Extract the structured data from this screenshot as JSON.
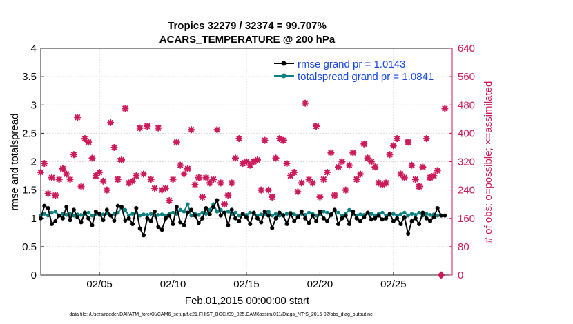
{
  "chart_data": {
    "type": "line",
    "title_line1": "Tropics 32279 / 32374 = 99.707%",
    "title_line2": "ACARS_TEMPERATURE @ 200 hPa",
    "xlabel": "Feb.01,2015 00:00:00 start",
    "ylabel_left": "rmse and totalspread",
    "ylabel_right": "# of obs: o=possible; ×=assimilated",
    "xlim": [
      1,
      29
    ],
    "ylim_left": [
      0,
      4
    ],
    "ylim_right": [
      0,
      640
    ],
    "x_ticks": [
      5,
      10,
      15,
      20,
      25
    ],
    "x_tick_labels": [
      "02/05",
      "02/10",
      "02/15",
      "02/20",
      "02/25"
    ],
    "y_left_ticks": [
      0,
      0.5,
      1,
      1.5,
      2,
      2.5,
      3,
      3.5,
      4
    ],
    "y_left_tick_labels": [
      "0",
      "0.5",
      "1",
      "1.5",
      "2",
      "2.5",
      "3",
      "3.5",
      "4"
    ],
    "y_right_ticks": [
      0,
      80,
      160,
      240,
      320,
      400,
      480,
      560,
      640
    ],
    "y_right_tick_labels": [
      "0",
      "80",
      "160",
      "240",
      "320",
      "400",
      "480",
      "560",
      "640"
    ],
    "legend": [
      "rmse grand pr = 1.0143",
      "totalspread grand pr = 1.0841"
    ],
    "footer": "data file: /Users/raeder/DAI/ATM_forcXX/CAM6_setup/f.e21.FHIST_BGC.f09_025.CAM6assim.011/Diags_NTrS_2015-02/obs_diag_output.nc",
    "colors": {
      "rmse": "#000000",
      "spread": "#0b8080",
      "obs": "#cc1a5a"
    },
    "series": [
      {
        "name": "rmse",
        "x": [
          1.0,
          1.25,
          1.5,
          1.75,
          2.0,
          2.25,
          2.5,
          2.75,
          3.0,
          3.25,
          3.5,
          3.75,
          4.0,
          4.25,
          4.5,
          4.75,
          5.0,
          5.25,
          5.5,
          5.75,
          6.0,
          6.25,
          6.5,
          6.75,
          7.0,
          7.25,
          7.5,
          7.75,
          8.0,
          8.25,
          8.5,
          8.75,
          9.0,
          9.25,
          9.5,
          9.75,
          10.0,
          10.25,
          10.5,
          10.75,
          11.0,
          11.25,
          11.5,
          11.75,
          12.0,
          12.25,
          12.5,
          12.75,
          13.0,
          13.25,
          13.5,
          13.75,
          14.0,
          14.25,
          14.5,
          14.75,
          15.0,
          15.25,
          15.5,
          15.75,
          16.0,
          16.25,
          16.5,
          16.75,
          17.0,
          17.25,
          17.5,
          17.75,
          18.0,
          18.25,
          18.5,
          18.75,
          19.0,
          19.25,
          19.5,
          19.75,
          20.0,
          20.25,
          20.5,
          20.75,
          21.0,
          21.25,
          21.5,
          21.75,
          22.0,
          22.25,
          22.5,
          22.75,
          23.0,
          23.25,
          23.5,
          23.75,
          24.0,
          24.25,
          24.5,
          24.75,
          25.0,
          25.25,
          25.5,
          25.75,
          26.0,
          26.25,
          26.5,
          26.75,
          27.0,
          27.25,
          27.5,
          27.75,
          28.0,
          28.25,
          28.5
        ],
        "values": [
          1.0,
          1.22,
          1.18,
          0.9,
          0.95,
          1.05,
          1.0,
          1.2,
          0.97,
          1.15,
          1.02,
          0.93,
          1.1,
          1.0,
          0.88,
          1.12,
          1.08,
          0.97,
          1.15,
          1.05,
          0.96,
          1.22,
          1.2,
          0.96,
          1.0,
          0.9,
          1.18,
          0.82,
          0.7,
          1.0,
          0.95,
          1.12,
          0.85,
          0.8,
          1.0,
          1.05,
          0.9,
          1.2,
          0.93,
          0.88,
          1.1,
          1.15,
          1.05,
          0.92,
          1.0,
          1.18,
          1.07,
          1.2,
          1.32,
          1.05,
          1.1,
          0.88,
          1.15,
          1.0,
          0.95,
          1.08,
          1.02,
          0.9,
          1.1,
          1.0,
          0.93,
          1.12,
          1.05,
          0.83,
          1.0,
          1.1,
          1.05,
          0.9,
          1.08,
          0.95,
          1.02,
          1.12,
          1.0,
          0.92,
          1.05,
          0.95,
          1.12,
          1.0,
          0.95,
          1.07,
          1.15,
          0.9,
          1.0,
          1.05,
          0.9,
          1.12,
          1.0,
          0.95,
          1.02,
          1.1,
          0.98,
          1.0,
          1.05,
          0.98,
          1.0,
          1.08,
          0.95,
          1.0,
          0.9,
          1.02,
          0.73,
          0.95,
          1.0,
          0.9,
          1.1,
          1.0,
          0.95,
          1.02,
          1.18,
          1.05,
          1.05
        ]
      },
      {
        "name": "totalspread",
        "x": [
          1.0,
          1.25,
          1.5,
          1.75,
          2.0,
          2.25,
          2.5,
          2.75,
          3.0,
          3.25,
          3.5,
          3.75,
          4.0,
          4.25,
          4.5,
          4.75,
          5.0,
          5.25,
          5.5,
          5.75,
          6.0,
          6.25,
          6.5,
          6.75,
          7.0,
          7.25,
          7.5,
          7.75,
          8.0,
          8.25,
          8.5,
          8.75,
          9.0,
          9.25,
          9.5,
          9.75,
          10.0,
          10.25,
          10.5,
          10.75,
          11.0,
          11.25,
          11.5,
          11.75,
          12.0,
          12.25,
          12.5,
          12.75,
          13.0,
          13.25,
          13.5,
          13.75,
          14.0,
          14.25,
          14.5,
          14.75,
          15.0,
          15.25,
          15.5,
          15.75,
          16.0,
          16.25,
          16.5,
          16.75,
          17.0,
          17.25,
          17.5,
          17.75,
          18.0,
          18.25,
          18.5,
          18.75,
          19.0,
          19.25,
          19.5,
          19.75,
          20.0,
          20.25,
          20.5,
          20.75,
          21.0,
          21.25,
          21.5,
          21.75,
          22.0,
          22.25,
          22.5,
          22.75,
          23.0,
          23.25,
          23.5,
          23.75,
          24.0,
          24.25,
          24.5,
          24.75,
          25.0,
          25.25,
          25.5,
          25.75,
          26.0,
          26.25,
          26.5,
          26.75,
          27.0,
          27.25,
          27.5,
          27.75,
          28.0,
          28.25,
          28.5
        ],
        "values": [
          1.05,
          1.08,
          1.05,
          1.1,
          1.12,
          1.05,
          1.08,
          1.06,
          1.08,
          1.05,
          1.07,
          1.06,
          1.08,
          1.1,
          1.05,
          1.08,
          1.06,
          1.07,
          1.09,
          1.05,
          1.08,
          1.1,
          1.18,
          1.15,
          1.05,
          1.08,
          1.1,
          1.05,
          1.07,
          1.06,
          1.08,
          1.05,
          1.06,
          1.07,
          1.05,
          1.08,
          1.1,
          1.08,
          1.15,
          1.12,
          1.25,
          1.05,
          1.08,
          1.06,
          1.1,
          1.08,
          1.15,
          1.25,
          1.12,
          1.15,
          1.1,
          1.12,
          1.08,
          1.1,
          1.05,
          1.08,
          1.06,
          1.1,
          1.08,
          1.05,
          1.07,
          1.08,
          1.12,
          1.05,
          1.08,
          1.05,
          1.06,
          1.08,
          1.1,
          1.07,
          1.05,
          1.08,
          1.06,
          1.1,
          1.08,
          1.05,
          1.07,
          1.12,
          1.1,
          1.05,
          1.15,
          1.1,
          1.05,
          1.08,
          1.15,
          1.08,
          1.05,
          1.07,
          1.06,
          1.1,
          1.08,
          1.05,
          1.08,
          1.1,
          1.05,
          1.06,
          1.08,
          1.05,
          1.07,
          1.1,
          1.05,
          1.08,
          1.06,
          1.1,
          1.05,
          1.08,
          1.06,
          1.07,
          1.05,
          1.05,
          1.05
        ]
      },
      {
        "name": "obs_possible",
        "x": [
          6.3
        ],
        "values": [
          325
        ]
      },
      {
        "name": "obs_assimilated",
        "x": [
          1.0,
          1.25,
          1.5,
          1.75,
          2.0,
          2.25,
          2.5,
          2.75,
          3.0,
          3.25,
          3.5,
          3.75,
          4.0,
          4.25,
          4.5,
          4.75,
          5.0,
          5.25,
          5.5,
          5.75,
          6.0,
          6.25,
          6.5,
          6.75,
          7.0,
          7.25,
          7.5,
          7.75,
          8.0,
          8.25,
          8.5,
          8.75,
          9.0,
          9.25,
          9.5,
          9.75,
          10.0,
          10.25,
          10.5,
          10.75,
          11.0,
          11.25,
          11.5,
          11.75,
          12.0,
          12.25,
          12.5,
          12.75,
          13.0,
          13.25,
          13.5,
          13.75,
          14.0,
          14.25,
          14.5,
          14.75,
          15.0,
          15.25,
          15.5,
          15.75,
          16.0,
          16.25,
          16.5,
          16.75,
          17.0,
          17.25,
          17.5,
          17.75,
          18.0,
          18.25,
          18.5,
          18.75,
          19.0,
          19.25,
          19.5,
          19.75,
          20.0,
          20.25,
          20.5,
          20.75,
          21.0,
          21.25,
          21.5,
          21.75,
          22.0,
          22.25,
          22.5,
          22.75,
          23.0,
          23.25,
          23.5,
          23.75,
          24.0,
          24.25,
          24.5,
          24.75,
          25.0,
          25.25,
          25.5,
          25.75,
          26.0,
          26.25,
          26.5,
          26.75,
          27.0,
          27.25,
          27.5,
          27.75,
          28.0,
          28.25,
          28.5
        ],
        "values": [
          290,
          315,
          230,
          275,
          225,
          270,
          300,
          285,
          270,
          340,
          445,
          250,
          385,
          375,
          330,
          280,
          290,
          265,
          240,
          430,
          360,
          270,
          325,
          470,
          260,
          265,
          280,
          415,
          285,
          420,
          270,
          245,
          415,
          240,
          245,
          210,
          270,
          375,
          310,
          285,
          300,
          410,
          255,
          275,
          220,
          275,
          260,
          270,
          410,
          260,
          200,
          225,
          260,
          330,
          385,
          315,
          320,
          310,
          320,
          325,
          240,
          380,
          240,
          220,
          330,
          385,
          380,
          315,
          280,
          290,
          235,
          260,
          485,
          270,
          260,
          420,
          220,
          270,
          290,
          345,
          225,
          305,
          320,
          240,
          310,
          345,
          270,
          285,
          370,
          330,
          320,
          305,
          260,
          255,
          260,
          340,
          365,
          385,
          285,
          275,
          375,
          310,
          270,
          250,
          305,
          385,
          275,
          280,
          295,
          0,
          470
        ]
      }
    ]
  }
}
